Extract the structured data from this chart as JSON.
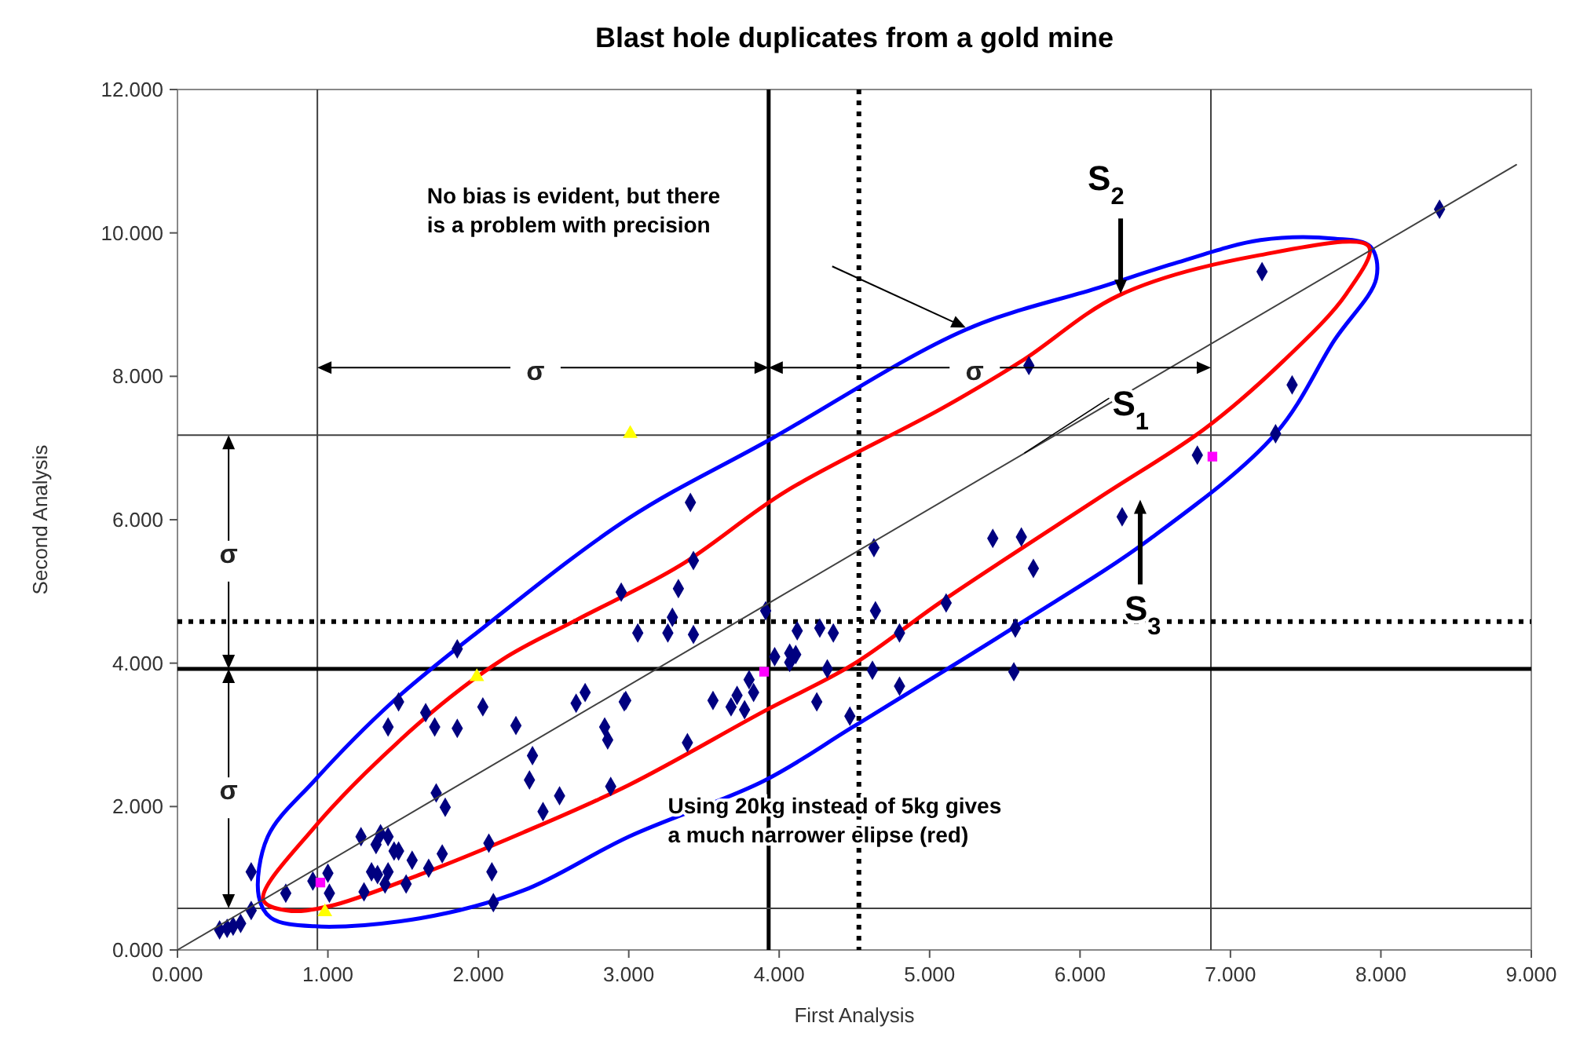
{
  "chart_data": {
    "type": "scatter",
    "title": "Blast hole duplicates from a gold mine",
    "xlabel": "First Analysis",
    "ylabel": "Second Analysis",
    "xlim": [
      0,
      9
    ],
    "ylim": [
      0,
      12
    ],
    "xticks": [
      {
        "value": 0,
        "label": "0.000"
      },
      {
        "value": 1,
        "label": "1.000"
      },
      {
        "value": 2,
        "label": "2.000"
      },
      {
        "value": 3,
        "label": "3.000"
      },
      {
        "value": 4,
        "label": "4.000"
      },
      {
        "value": 5,
        "label": "5.000"
      },
      {
        "value": 6,
        "label": "6.000"
      },
      {
        "value": 7,
        "label": "7.000"
      },
      {
        "value": 8,
        "label": "8.000"
      },
      {
        "value": 9,
        "label": "9.000"
      }
    ],
    "yticks": [
      {
        "value": 0,
        "label": "0.000"
      },
      {
        "value": 2,
        "label": "2.000"
      },
      {
        "value": 4,
        "label": "4.000"
      },
      {
        "value": 6,
        "label": "6.000"
      },
      {
        "value": 8,
        "label": "8.000"
      },
      {
        "value": 10,
        "label": "10.000"
      },
      {
        "value": 12,
        "label": "12.000"
      }
    ],
    "grid": false,
    "series": [
      {
        "color": "#000080",
        "marker": "diamond",
        "x": [
          0.49,
          0.49,
          0.28,
          0.33,
          0.37,
          0.42,
          0.72,
          0.9,
          1.0,
          1.01,
          1.22,
          1.35,
          1.4,
          1.32,
          1.44,
          1.47,
          1.56,
          1.24,
          1.29,
          1.33,
          1.4,
          1.38,
          1.52,
          1.67,
          1.76,
          1.78,
          1.72,
          1.4,
          1.47,
          1.65,
          1.71,
          1.86,
          2.03,
          2.25,
          2.36,
          2.34,
          2.54,
          2.43,
          2.88,
          2.65,
          2.71,
          2.84,
          2.86,
          2.97,
          2.07,
          2.09,
          2.1,
          1.86,
          3.41,
          3.43,
          3.33,
          2.95,
          3.29,
          3.26,
          3.06,
          3.43,
          3.91,
          4.63,
          4.64,
          4.8,
          3.97,
          4.07,
          4.11,
          4.07,
          4.12,
          4.27,
          4.36,
          3.8,
          3.83,
          3.72,
          3.68,
          3.77,
          3.56,
          4.32,
          4.25,
          4.47,
          4.62,
          4.8,
          3.39,
          2.98,
          5.42,
          5.61,
          5.69,
          6.28,
          6.78,
          5.11,
          5.57,
          5.56,
          8.39,
          7.21,
          7.41,
          7.3,
          5.66
        ],
        "values": [
          1.09,
          0.55,
          0.28,
          0.3,
          0.33,
          0.37,
          0.79,
          0.96,
          1.07,
          0.79,
          1.58,
          1.62,
          1.58,
          1.47,
          1.38,
          1.38,
          1.25,
          0.81,
          1.09,
          1.05,
          1.09,
          0.92,
          0.92,
          1.14,
          1.34,
          1.99,
          2.19,
          3.11,
          3.46,
          3.31,
          3.11,
          3.09,
          3.39,
          3.13,
          2.71,
          2.37,
          2.15,
          1.93,
          2.28,
          3.44,
          3.59,
          3.11,
          2.93,
          3.46,
          1.49,
          1.09,
          0.66,
          4.2,
          6.24,
          5.43,
          5.04,
          4.99,
          4.64,
          4.42,
          4.42,
          4.4,
          4.73,
          5.61,
          4.73,
          4.42,
          4.09,
          4.14,
          4.12,
          4.01,
          4.45,
          4.49,
          4.42,
          3.77,
          3.59,
          3.55,
          3.39,
          3.35,
          3.48,
          3.92,
          3.46,
          3.26,
          3.9,
          3.68,
          2.89,
          3.48,
          5.74,
          5.76,
          5.32,
          6.04,
          6.9,
          4.84,
          4.49,
          3.88,
          10.33,
          9.46,
          7.88,
          7.2,
          8.15
        ]
      },
      {
        "color": "#ff00ff",
        "marker": "square",
        "x": [
          0.95,
          3.9,
          6.88
        ],
        "values": [
          0.94,
          3.88,
          6.88
        ]
      },
      {
        "color": "#ffff00",
        "marker": "triangle",
        "x": [
          0.98,
          1.99,
          3.01
        ],
        "values": [
          0.53,
          3.81,
          7.2
        ]
      },
      {
        "type": "line",
        "color": "#404040",
        "line_style": "solid",
        "x": [
          0,
          8.9
        ],
        "values": [
          0,
          10.95
        ]
      }
    ],
    "ref_lines": [
      {
        "axis": "x",
        "value": 0.93,
        "color": "#404040",
        "line_style": "solid"
      },
      {
        "axis": "x",
        "value": 3.93,
        "color": "#000000",
        "line_style": "solid"
      },
      {
        "axis": "x",
        "value": 4.53,
        "color": "#000000",
        "line_style": "dotted"
      },
      {
        "axis": "x",
        "value": 6.87,
        "color": "#404040",
        "line_style": "solid"
      },
      {
        "axis": "y",
        "value": 0.58,
        "color": "#404040",
        "line_style": "solid"
      },
      {
        "axis": "y",
        "value": 3.92,
        "color": "#000000",
        "line_style": "solid"
      },
      {
        "axis": "y",
        "value": 4.58,
        "color": "#000000",
        "line_style": "dotted"
      },
      {
        "axis": "y",
        "value": 7.18,
        "color": "#404040",
        "line_style": "solid"
      }
    ],
    "annotations": [
      "No bias is evident, but there\nis a problem with precision",
      "Using 20kg instead of 5kg gives\na much narrower elipse (red)",
      "S$_{2}$",
      {
        "text": "S$_{1}$",
        "x": 5.63,
        "y": 6.93
      },
      "S$_{3}$",
      "σ",
      "σ",
      "σ",
      "σ"
    ]
  }
}
